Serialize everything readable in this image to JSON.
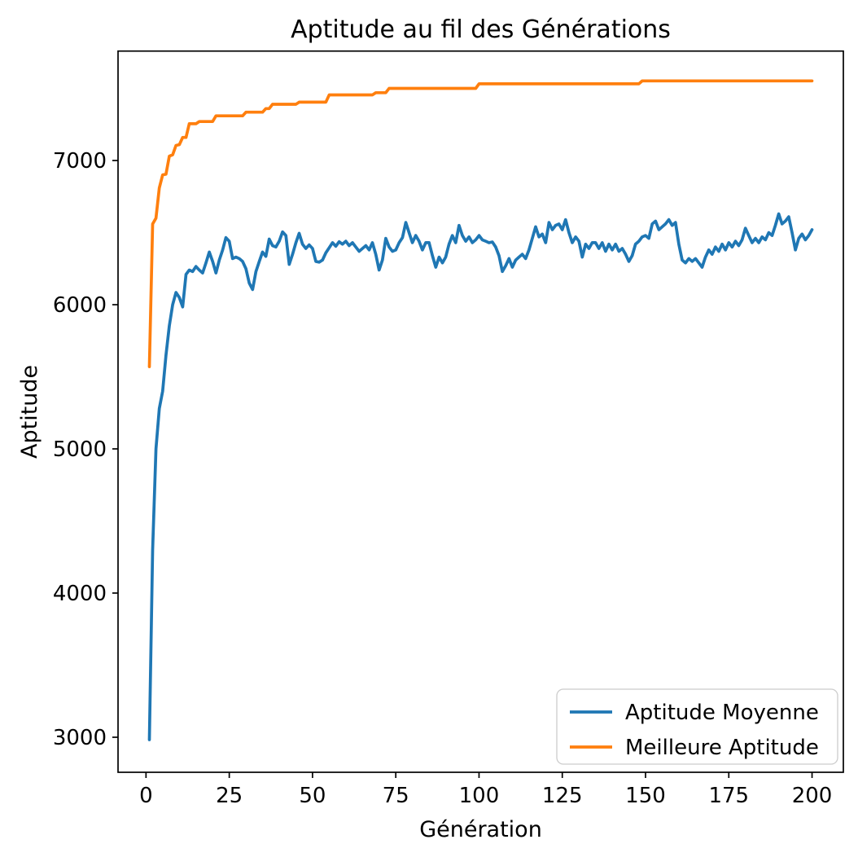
{
  "chart_data": {
    "type": "line",
    "title": "Aptitude au fil des Générations",
    "xlabel": "Génération",
    "ylabel": "Aptitude",
    "xlim": [
      -8.4,
      209.4
    ],
    "ylim": [
      2757,
      7759
    ],
    "xticks": [
      0,
      25,
      50,
      75,
      100,
      125,
      150,
      175,
      200
    ],
    "yticks": [
      3000,
      4000,
      5000,
      6000,
      7000
    ],
    "grid": false,
    "legend_position": "lower right",
    "x_start": 1,
    "x_step": 1,
    "series": [
      {
        "name": "Aptitude Moyenne",
        "color": "#1f77b4",
        "values": [
          2983,
          4300,
          5000,
          5280,
          5400,
          5650,
          5853,
          6000,
          6085,
          6050,
          5985,
          6210,
          6240,
          6230,
          6265,
          6240,
          6220,
          6290,
          6365,
          6300,
          6220,
          6310,
          6380,
          6465,
          6440,
          6320,
          6330,
          6320,
          6300,
          6250,
          6150,
          6105,
          6230,
          6300,
          6365,
          6335,
          6455,
          6410,
          6400,
          6440,
          6505,
          6480,
          6280,
          6350,
          6430,
          6495,
          6420,
          6390,
          6415,
          6390,
          6300,
          6295,
          6310,
          6360,
          6395,
          6430,
          6405,
          6437,
          6420,
          6440,
          6410,
          6430,
          6400,
          6370,
          6390,
          6410,
          6380,
          6430,
          6350,
          6240,
          6310,
          6460,
          6400,
          6370,
          6380,
          6430,
          6465,
          6570,
          6500,
          6430,
          6480,
          6440,
          6380,
          6430,
          6430,
          6340,
          6260,
          6330,
          6290,
          6330,
          6420,
          6480,
          6430,
          6550,
          6480,
          6440,
          6470,
          6430,
          6450,
          6480,
          6450,
          6440,
          6430,
          6435,
          6400,
          6340,
          6230,
          6270,
          6320,
          6260,
          6310,
          6330,
          6350,
          6320,
          6380,
          6460,
          6540,
          6470,
          6490,
          6430,
          6570,
          6520,
          6550,
          6560,
          6520,
          6590,
          6500,
          6430,
          6470,
          6440,
          6330,
          6420,
          6390,
          6430,
          6430,
          6390,
          6430,
          6370,
          6420,
          6380,
          6420,
          6370,
          6390,
          6350,
          6300,
          6340,
          6420,
          6440,
          6470,
          6480,
          6460,
          6560,
          6580,
          6520,
          6540,
          6560,
          6590,
          6550,
          6570,
          6420,
          6310,
          6290,
          6320,
          6300,
          6320,
          6290,
          6260,
          6330,
          6380,
          6350,
          6400,
          6370,
          6420,
          6380,
          6430,
          6400,
          6440,
          6410,
          6450,
          6530,
          6480,
          6430,
          6460,
          6430,
          6470,
          6450,
          6500,
          6480,
          6550,
          6630,
          6560,
          6580,
          6610,
          6500,
          6380,
          6460,
          6490,
          6450,
          6480,
          6520
        ]
      },
      {
        "name": "Meilleure Aptitude",
        "color": "#ff7f0e",
        "values": [
          5570,
          6560,
          6600,
          6810,
          6900,
          6905,
          7030,
          7040,
          7105,
          7110,
          7160,
          7160,
          7255,
          7255,
          7255,
          7270,
          7270,
          7270,
          7270,
          7270,
          7310,
          7310,
          7310,
          7310,
          7310,
          7310,
          7310,
          7310,
          7310,
          7335,
          7335,
          7335,
          7335,
          7335,
          7335,
          7360,
          7360,
          7390,
          7390,
          7390,
          7390,
          7390,
          7390,
          7390,
          7390,
          7405,
          7405,
          7405,
          7405,
          7405,
          7405,
          7405,
          7405,
          7405,
          7455,
          7455,
          7455,
          7455,
          7455,
          7455,
          7455,
          7455,
          7455,
          7455,
          7455,
          7455,
          7455,
          7455,
          7470,
          7470,
          7470,
          7470,
          7500,
          7500,
          7500,
          7500,
          7500,
          7500,
          7500,
          7500,
          7500,
          7500,
          7500,
          7500,
          7500,
          7500,
          7500,
          7500,
          7500,
          7500,
          7500,
          7500,
          7500,
          7500,
          7500,
          7500,
          7500,
          7500,
          7500,
          7532,
          7532,
          7532,
          7532,
          7532,
          7532,
          7532,
          7532,
          7532,
          7532,
          7532,
          7532,
          7532,
          7532,
          7532,
          7532,
          7532,
          7532,
          7532,
          7532,
          7532,
          7532,
          7532,
          7532,
          7532,
          7532,
          7532,
          7532,
          7532,
          7532,
          7532,
          7532,
          7532,
          7532,
          7532,
          7532,
          7532,
          7532,
          7532,
          7532,
          7532,
          7532,
          7532,
          7532,
          7532,
          7532,
          7532,
          7532,
          7532,
          7552,
          7552,
          7552,
          7552,
          7552,
          7552,
          7552,
          7552,
          7552,
          7552,
          7552,
          7552,
          7552,
          7552,
          7552,
          7552,
          7552,
          7552,
          7552,
          7552,
          7552,
          7552,
          7552,
          7552,
          7552,
          7552,
          7552,
          7552,
          7552,
          7552,
          7552,
          7552,
          7552,
          7552,
          7552,
          7552,
          7552,
          7552,
          7552,
          7552,
          7552,
          7552,
          7552,
          7552,
          7552,
          7552,
          7552,
          7552,
          7552,
          7552,
          7552,
          7552
        ]
      }
    ]
  }
}
